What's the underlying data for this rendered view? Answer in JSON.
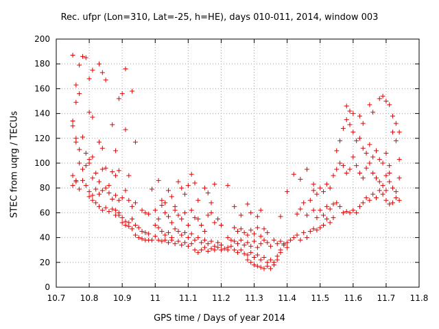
{
  "chart_data": {
    "type": "scatter",
    "title": "Rec. ufpr (Lon=310, Lat=-25, h=HE), days 010-011, 2014, window 003",
    "xlabel": "GPS time / Days of year 2014",
    "ylabel": "STEC from uqrg / TECUs",
    "xlim": [
      10.7,
      11.8
    ],
    "ylim": [
      0,
      200
    ],
    "xticks": [
      "10.7",
      "10.8",
      "10.9",
      "11",
      "11.1",
      "11.2",
      "11.3",
      "11.4",
      "11.5",
      "11.6",
      "11.7",
      "11.8"
    ],
    "yticks": [
      "0",
      "20",
      "40",
      "60",
      "80",
      "100",
      "120",
      "140",
      "160",
      "180",
      "200"
    ],
    "grid": true,
    "marker": "plus",
    "color": "#e00000",
    "points": [
      [
        10.75,
        187
      ],
      [
        10.76,
        163
      ],
      [
        10.77,
        179
      ],
      [
        10.78,
        186
      ],
      [
        10.79,
        185
      ],
      [
        10.8,
        168
      ],
      [
        10.81,
        175
      ],
      [
        10.83,
        180
      ],
      [
        10.84,
        173
      ],
      [
        10.85,
        167
      ],
      [
        10.91,
        176
      ],
      [
        10.93,
        158
      ],
      [
        10.9,
        156
      ],
      [
        10.89,
        152
      ],
      [
        10.75,
        134
      ],
      [
        10.75,
        130
      ],
      [
        10.76,
        149
      ],
      [
        10.77,
        156
      ],
      [
        10.8,
        141
      ],
      [
        10.81,
        137
      ],
      [
        10.87,
        131
      ],
      [
        10.91,
        127
      ],
      [
        10.94,
        117
      ],
      [
        10.76,
        120
      ],
      [
        10.76,
        117
      ],
      [
        10.77,
        111
      ],
      [
        10.78,
        121
      ],
      [
        10.79,
        108
      ],
      [
        10.8,
        103
      ],
      [
        10.81,
        105
      ],
      [
        10.83,
        117
      ],
      [
        10.84,
        112
      ],
      [
        10.85,
        96
      ],
      [
        10.88,
        110
      ],
      [
        10.88,
        90
      ],
      [
        10.92,
        90
      ],
      [
        10.75,
        90
      ],
      [
        10.76,
        85
      ],
      [
        10.77,
        100
      ],
      [
        10.78,
        95
      ],
      [
        10.79,
        98
      ],
      [
        10.8,
        100
      ],
      [
        10.81,
        88
      ],
      [
        10.82,
        92
      ],
      [
        10.83,
        85
      ],
      [
        10.84,
        95
      ],
      [
        10.86,
        82
      ],
      [
        10.87,
        93
      ],
      [
        10.89,
        94
      ],
      [
        10.75,
        82
      ],
      [
        10.76,
        86
      ],
      [
        10.77,
        79
      ],
      [
        10.78,
        86
      ],
      [
        10.79,
        82
      ],
      [
        10.8,
        77
      ],
      [
        10.81,
        74
      ],
      [
        10.82,
        79
      ],
      [
        10.83,
        75
      ],
      [
        10.84,
        78
      ],
      [
        10.85,
        80
      ],
      [
        10.86,
        76
      ],
      [
        10.87,
        71
      ],
      [
        10.88,
        74
      ],
      [
        10.89,
        70
      ],
      [
        10.9,
        72
      ],
      [
        10.91,
        78
      ],
      [
        10.92,
        70
      ],
      [
        10.93,
        65
      ],
      [
        10.94,
        68
      ],
      [
        10.96,
        62
      ],
      [
        10.97,
        60
      ],
      [
        10.98,
        59
      ],
      [
        10.8,
        73
      ],
      [
        10.81,
        70
      ],
      [
        10.82,
        68
      ],
      [
        10.83,
        65
      ],
      [
        10.84,
        62
      ],
      [
        10.85,
        64
      ],
      [
        10.86,
        61
      ],
      [
        10.87,
        63
      ],
      [
        10.88,
        58
      ],
      [
        10.89,
        60
      ],
      [
        10.9,
        56
      ],
      [
        10.91,
        53
      ],
      [
        10.92,
        52
      ],
      [
        10.93,
        55
      ],
      [
        10.94,
        50
      ],
      [
        10.95,
        48
      ],
      [
        10.96,
        45
      ],
      [
        10.97,
        44
      ],
      [
        10.98,
        43
      ],
      [
        10.88,
        62
      ],
      [
        10.89,
        58
      ],
      [
        10.9,
        52
      ],
      [
        10.91,
        50
      ],
      [
        10.92,
        49
      ],
      [
        10.93,
        47
      ],
      [
        10.94,
        42
      ],
      [
        10.95,
        40
      ],
      [
        10.96,
        39
      ],
      [
        10.97,
        38
      ],
      [
        10.98,
        38
      ],
      [
        10.99,
        38
      ],
      [
        11.0,
        41
      ],
      [
        10.99,
        79
      ],
      [
        11.01,
        86
      ],
      [
        11.02,
        70
      ],
      [
        11.03,
        68
      ],
      [
        11.04,
        78
      ],
      [
        11.05,
        73
      ],
      [
        11.06,
        65
      ],
      [
        11.07,
        85
      ],
      [
        11.08,
        80
      ],
      [
        11.09,
        75
      ],
      [
        11.1,
        82
      ],
      [
        11.11,
        91
      ],
      [
        11.12,
        84
      ],
      [
        11.13,
        70
      ],
      [
        11.15,
        80
      ],
      [
        11.16,
        76
      ],
      [
        11.17,
        68
      ],
      [
        11.18,
        83
      ],
      [
        11.22,
        82
      ],
      [
        11.0,
        62
      ],
      [
        11.01,
        55
      ],
      [
        11.02,
        66
      ],
      [
        11.03,
        60
      ],
      [
        11.04,
        57
      ],
      [
        11.05,
        52
      ],
      [
        11.06,
        62
      ],
      [
        11.07,
        58
      ],
      [
        11.08,
        55
      ],
      [
        11.09,
        60
      ],
      [
        11.1,
        50
      ],
      [
        11.11,
        62
      ],
      [
        11.12,
        56
      ],
      [
        11.13,
        55
      ],
      [
        11.14,
        50
      ],
      [
        11.15,
        45
      ],
      [
        11.16,
        58
      ],
      [
        11.17,
        60
      ],
      [
        11.18,
        52
      ],
      [
        11.19,
        55
      ],
      [
        11.2,
        50
      ],
      [
        11.0,
        50
      ],
      [
        11.01,
        48
      ],
      [
        11.02,
        45
      ],
      [
        11.03,
        42
      ],
      [
        11.04,
        44
      ],
      [
        11.05,
        40
      ],
      [
        11.06,
        47
      ],
      [
        11.07,
        45
      ],
      [
        11.08,
        42
      ],
      [
        11.09,
        44
      ],
      [
        11.1,
        40
      ],
      [
        11.11,
        43
      ],
      [
        11.12,
        38
      ],
      [
        11.13,
        40
      ],
      [
        11.14,
        36
      ],
      [
        11.15,
        38
      ],
      [
        11.16,
        35
      ],
      [
        11.17,
        37
      ],
      [
        11.18,
        33
      ],
      [
        11.19,
        36
      ],
      [
        11.2,
        34
      ],
      [
        11.01,
        38
      ],
      [
        11.02,
        37
      ],
      [
        11.03,
        38
      ],
      [
        11.04,
        36
      ],
      [
        11.05,
        38
      ],
      [
        11.06,
        35
      ],
      [
        11.07,
        37
      ],
      [
        11.08,
        34
      ],
      [
        11.09,
        36
      ],
      [
        11.1,
        33
      ],
      [
        11.11,
        35
      ],
      [
        11.12,
        30
      ],
      [
        11.13,
        28
      ],
      [
        11.14,
        30
      ],
      [
        11.15,
        32
      ],
      [
        11.16,
        29
      ],
      [
        11.17,
        31
      ],
      [
        11.18,
        30
      ],
      [
        11.19,
        32
      ],
      [
        11.2,
        30
      ],
      [
        11.21,
        31
      ],
      [
        11.22,
        30
      ],
      [
        11.24,
        65
      ],
      [
        11.26,
        58
      ],
      [
        11.28,
        67
      ],
      [
        11.29,
        60
      ],
      [
        11.31,
        57
      ],
      [
        11.32,
        62
      ],
      [
        11.24,
        48
      ],
      [
        11.25,
        45
      ],
      [
        11.26,
        47
      ],
      [
        11.27,
        44
      ],
      [
        11.28,
        42
      ],
      [
        11.29,
        46
      ],
      [
        11.3,
        43
      ],
      [
        11.31,
        48
      ],
      [
        11.32,
        41
      ],
      [
        11.33,
        47
      ],
      [
        11.34,
        44
      ],
      [
        11.22,
        40
      ],
      [
        11.23,
        38
      ],
      [
        11.24,
        37
      ],
      [
        11.25,
        35
      ],
      [
        11.26,
        38
      ],
      [
        11.27,
        34
      ],
      [
        11.28,
        36
      ],
      [
        11.29,
        33
      ],
      [
        11.3,
        37
      ],
      [
        11.31,
        32
      ],
      [
        11.32,
        35
      ],
      [
        11.33,
        38
      ],
      [
        11.34,
        36
      ],
      [
        11.35,
        33
      ],
      [
        11.36,
        38
      ],
      [
        11.37,
        35
      ],
      [
        11.38,
        37
      ],
      [
        11.39,
        34
      ],
      [
        11.22,
        32
      ],
      [
        11.23,
        33
      ],
      [
        11.24,
        30
      ],
      [
        11.25,
        28
      ],
      [
        11.26,
        30
      ],
      [
        11.27,
        27
      ],
      [
        11.28,
        26
      ],
      [
        11.29,
        28
      ],
      [
        11.3,
        24
      ],
      [
        11.31,
        26
      ],
      [
        11.32,
        22
      ],
      [
        11.33,
        24
      ],
      [
        11.34,
        20
      ],
      [
        11.35,
        22
      ],
      [
        11.36,
        20
      ],
      [
        11.37,
        25
      ],
      [
        11.38,
        28
      ],
      [
        11.28,
        22
      ],
      [
        11.29,
        20
      ],
      [
        11.3,
        18
      ],
      [
        11.31,
        17
      ],
      [
        11.32,
        16
      ],
      [
        11.33,
        15
      ],
      [
        11.34,
        17
      ],
      [
        11.35,
        15
      ],
      [
        11.36,
        18
      ],
      [
        11.37,
        22
      ],
      [
        11.38,
        30
      ],
      [
        11.39,
        35
      ],
      [
        11.4,
        32
      ],
      [
        11.4,
        36
      ],
      [
        11.41,
        38
      ],
      [
        11.42,
        40
      ],
      [
        11.43,
        42
      ],
      [
        11.44,
        38
      ],
      [
        11.45,
        44
      ],
      [
        11.46,
        40
      ],
      [
        11.47,
        45
      ],
      [
        11.48,
        47
      ],
      [
        11.49,
        46
      ],
      [
        11.5,
        48
      ],
      [
        11.51,
        50
      ],
      [
        11.52,
        55
      ],
      [
        11.53,
        52
      ],
      [
        11.54,
        56
      ],
      [
        11.38,
        57
      ],
      [
        11.4,
        77
      ],
      [
        11.42,
        91
      ],
      [
        11.44,
        87
      ],
      [
        11.46,
        95
      ],
      [
        11.48,
        83
      ],
      [
        11.47,
        70
      ],
      [
        11.45,
        68
      ],
      [
        11.44,
        63
      ],
      [
        11.43,
        59
      ],
      [
        11.46,
        58
      ],
      [
        11.48,
        62
      ],
      [
        11.49,
        56
      ],
      [
        11.5,
        62
      ],
      [
        11.51,
        58
      ],
      [
        11.52,
        65
      ],
      [
        11.53,
        63
      ],
      [
        11.54,
        67
      ],
      [
        11.55,
        68
      ],
      [
        11.56,
        65
      ],
      [
        11.57,
        60
      ],
      [
        11.58,
        61
      ],
      [
        11.59,
        60
      ],
      [
        11.6,
        62
      ],
      [
        11.61,
        60
      ],
      [
        11.62,
        65
      ],
      [
        11.63,
        68
      ],
      [
        11.64,
        72
      ],
      [
        11.65,
        70
      ],
      [
        11.66,
        75
      ],
      [
        11.67,
        72
      ],
      [
        11.68,
        78
      ],
      [
        11.69,
        75
      ],
      [
        11.48,
        78
      ],
      [
        11.49,
        75
      ],
      [
        11.5,
        80
      ],
      [
        11.51,
        77
      ],
      [
        11.52,
        83
      ],
      [
        11.53,
        80
      ],
      [
        11.54,
        90
      ],
      [
        11.55,
        95
      ],
      [
        11.56,
        100
      ],
      [
        11.57,
        98
      ],
      [
        11.58,
        92
      ],
      [
        11.59,
        95
      ],
      [
        11.6,
        105
      ],
      [
        11.61,
        98
      ],
      [
        11.62,
        92
      ],
      [
        11.63,
        88
      ],
      [
        11.64,
        96
      ],
      [
        11.65,
        100
      ],
      [
        11.66,
        92
      ],
      [
        11.67,
        88
      ],
      [
        11.68,
        85
      ],
      [
        11.69,
        82
      ],
      [
        11.7,
        90
      ],
      [
        11.71,
        85
      ],
      [
        11.55,
        110
      ],
      [
        11.56,
        118
      ],
      [
        11.57,
        128
      ],
      [
        11.58,
        135
      ],
      [
        11.59,
        131
      ],
      [
        11.6,
        125
      ],
      [
        11.61,
        118
      ],
      [
        11.62,
        120
      ],
      [
        11.63,
        112
      ],
      [
        11.64,
        108
      ],
      [
        11.65,
        115
      ],
      [
        11.66,
        105
      ],
      [
        11.67,
        110
      ],
      [
        11.68,
        103
      ],
      [
        11.69,
        100
      ],
      [
        11.7,
        108
      ],
      [
        11.71,
        98
      ],
      [
        11.58,
        146
      ],
      [
        11.59,
        142
      ],
      [
        11.6,
        140
      ],
      [
        11.62,
        138
      ],
      [
        11.63,
        132
      ],
      [
        11.65,
        147
      ],
      [
        11.66,
        141
      ],
      [
        11.68,
        152
      ],
      [
        11.69,
        154
      ],
      [
        11.7,
        150
      ],
      [
        11.71,
        147
      ],
      [
        11.72,
        138
      ],
      [
        11.73,
        132
      ],
      [
        11.74,
        125
      ],
      [
        11.72,
        125
      ],
      [
        11.73,
        118
      ],
      [
        11.74,
        103
      ],
      [
        11.7,
        70
      ],
      [
        11.71,
        67
      ],
      [
        11.72,
        68
      ],
      [
        11.73,
        72
      ],
      [
        11.74,
        70
      ],
      [
        11.72,
        80
      ],
      [
        11.73,
        77
      ],
      [
        11.74,
        88
      ],
      [
        11.71,
        92
      ],
      [
        11.7,
        78
      ]
    ]
  }
}
